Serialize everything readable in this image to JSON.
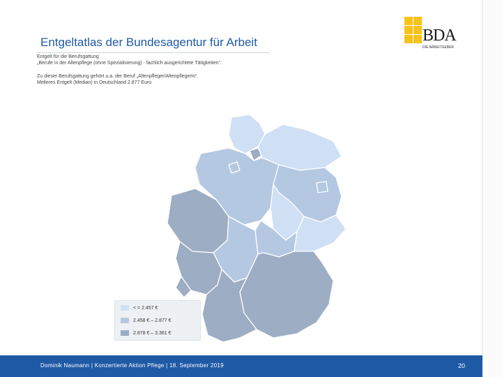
{
  "title": "Entgeltatlas der Bundesagentur für Arbeit",
  "logo": {
    "letters": "BDA",
    "tagline": "DIE ARBEITGEBER"
  },
  "description": {
    "line1": "Entgelt für die Berufsgattung",
    "line2": "„Berufe in der Altenpflege (ohne Spezialisierung) - fachlich ausgerichtete Tätigkeiten“.",
    "line3": "Zu dieser Berufsgattung gehört u.a. der Beruf „Altenpfleger/Altenpflegerin“.",
    "line4": "Mittleres Entgelt (Median) in Deutschland 2.877 Euro"
  },
  "legend": [
    {
      "label": "< = 2.457 €",
      "color": "#cfe0f5"
    },
    {
      "label": "2.458 € – 2.877 €",
      "color": "#b4c8e2"
    },
    {
      "label": "2.878 € – 3.361 €",
      "color": "#9cadc4"
    }
  ],
  "colors": {
    "light": "#cfe0f5",
    "medium": "#b4c8e2",
    "dark": "#9cadc4",
    "accent": "#1f5aa6",
    "logo": "#f7c21b"
  },
  "footer": {
    "text": "Dominik Naumann | Konzertierte Aktion Pflege | 18. September 2019",
    "page": "20"
  }
}
